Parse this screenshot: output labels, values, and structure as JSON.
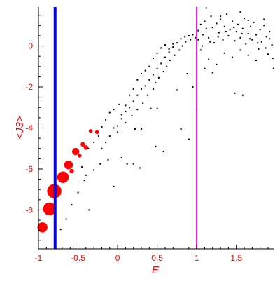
{
  "chart_data": {
    "type": "scatter",
    "title": "",
    "xlabel": "E",
    "ylabel": "<J3>",
    "xlim": [
      -1.0,
      1.98
    ],
    "ylim": [
      -9.9,
      1.9
    ],
    "xticks": [
      -1,
      -0.5,
      0,
      0.5,
      1,
      1.5
    ],
    "xtick_labels": [
      "-1",
      "-0.5",
      "0",
      "0.5",
      "1",
      "1.5"
    ],
    "yticks": [
      -8,
      -6,
      -4,
      -2,
      0
    ],
    "ytick_labels": [
      "-8",
      "-6",
      "-4",
      "-2",
      "0"
    ],
    "grid": false,
    "vertical_lines": [
      {
        "x": -0.79,
        "color": "#0000ff"
      },
      {
        "x": 1.0,
        "color": "#cc00cc"
      }
    ],
    "series": [
      {
        "color": "#ff0000",
        "marker": "circle",
        "points": [
          {
            "x": -0.95,
            "y": -8.85,
            "weight": 3.0
          },
          {
            "x": -0.86,
            "y": -7.95,
            "weight": 4.0
          },
          {
            "x": -0.8,
            "y": -7.08,
            "weight": 4.5
          },
          {
            "x": -0.69,
            "y": -6.4,
            "weight": 3.5
          },
          {
            "x": -0.62,
            "y": -5.8,
            "weight": 2.5
          },
          {
            "x": -0.58,
            "y": -6.1,
            "weight": 1.0
          },
          {
            "x": -0.53,
            "y": -5.15,
            "weight": 2.0
          },
          {
            "x": -0.48,
            "y": -5.35,
            "weight": 0.8
          },
          {
            "x": -0.44,
            "y": -4.8,
            "weight": 1.0
          },
          {
            "x": -0.4,
            "y": -4.95,
            "weight": 1.0
          },
          {
            "x": -0.34,
            "y": -4.15,
            "weight": 0.8
          },
          {
            "x": -0.26,
            "y": -4.2,
            "weight": 0.8
          }
        ]
      },
      {
        "color": "#000000",
        "marker": "dot",
        "points": [
          {
            "x": -0.72,
            "y": -8.95
          },
          {
            "x": -0.65,
            "y": -8.45
          },
          {
            "x": -0.58,
            "y": -7.75
          },
          {
            "x": -0.5,
            "y": -7.15
          },
          {
            "x": -0.42,
            "y": -6.55
          },
          {
            "x": -0.36,
            "y": -8.0
          },
          {
            "x": -0.3,
            "y": -6.05
          },
          {
            "x": -0.22,
            "y": -5.75
          },
          {
            "x": -0.12,
            "y": -5.55
          },
          {
            "x": -0.05,
            "y": -6.85
          },
          {
            "x": 0.05,
            "y": -5.45
          },
          {
            "x": 0.12,
            "y": -5.75
          },
          {
            "x": 0.2,
            "y": -5.75
          },
          {
            "x": 0.28,
            "y": -5.95
          },
          {
            "x": 0.48,
            "y": -4.9
          },
          {
            "x": 0.58,
            "y": -5.15
          },
          {
            "x": -0.45,
            "y": -5.9
          },
          {
            "x": -0.4,
            "y": -6.3
          },
          {
            "x": -0.37,
            "y": -5.0
          },
          {
            "x": -0.3,
            "y": -4.7
          },
          {
            "x": -0.24,
            "y": -4.4
          },
          {
            "x": -0.2,
            "y": -3.95
          },
          {
            "x": -0.15,
            "y": -3.6
          },
          {
            "x": -0.1,
            "y": -3.25
          },
          {
            "x": -0.05,
            "y": -3.1
          },
          {
            "x": 0.02,
            "y": -2.85
          },
          {
            "x": 0.05,
            "y": -3.35
          },
          {
            "x": 0.1,
            "y": -2.9
          },
          {
            "x": 0.15,
            "y": -2.4
          },
          {
            "x": 0.2,
            "y": -2.1
          },
          {
            "x": 0.25,
            "y": -1.65
          },
          {
            "x": 0.3,
            "y": -1.35
          },
          {
            "x": 0.35,
            "y": -1.2
          },
          {
            "x": 0.4,
            "y": -1.0
          },
          {
            "x": 0.45,
            "y": -0.6
          },
          {
            "x": 0.5,
            "y": -0.35
          },
          {
            "x": 0.55,
            "y": -0.1
          },
          {
            "x": 0.6,
            "y": 0.05
          },
          {
            "x": 0.65,
            "y": -0.15
          },
          {
            "x": 0.7,
            "y": 0.1
          },
          {
            "x": -0.2,
            "y": -5.0
          },
          {
            "x": -0.15,
            "y": -4.7
          },
          {
            "x": -0.1,
            "y": -4.4
          },
          {
            "x": -0.05,
            "y": -4.0
          },
          {
            "x": 0.0,
            "y": -3.9
          },
          {
            "x": 0.05,
            "y": -3.55
          },
          {
            "x": 0.1,
            "y": -3.2
          },
          {
            "x": 0.15,
            "y": -3.0
          },
          {
            "x": 0.2,
            "y": -2.7
          },
          {
            "x": 0.25,
            "y": -2.4
          },
          {
            "x": 0.3,
            "y": -2.1
          },
          {
            "x": 0.35,
            "y": -1.95
          },
          {
            "x": 0.4,
            "y": -1.65
          },
          {
            "x": 0.45,
            "y": -1.4
          },
          {
            "x": 0.5,
            "y": -1.1
          },
          {
            "x": 0.55,
            "y": -0.85
          },
          {
            "x": 0.6,
            "y": -0.55
          },
          {
            "x": 0.65,
            "y": -0.3
          },
          {
            "x": 0.7,
            "y": -0.05
          },
          {
            "x": 0.75,
            "y": 0.15
          },
          {
            "x": 0.8,
            "y": 0.35
          },
          {
            "x": 0.85,
            "y": 0.45
          },
          {
            "x": 0.9,
            "y": 0.5
          },
          {
            "x": 0.95,
            "y": 0.55
          },
          {
            "x": 0.0,
            "y": -4.2
          },
          {
            "x": 0.1,
            "y": -3.75
          },
          {
            "x": 0.18,
            "y": -3.4
          },
          {
            "x": 0.22,
            "y": -4.05
          },
          {
            "x": 0.25,
            "y": -3.1
          },
          {
            "x": 0.32,
            "y": -2.8
          },
          {
            "x": 0.38,
            "y": -2.4
          },
          {
            "x": 0.42,
            "y": -3.05
          },
          {
            "x": 0.45,
            "y": -2.1
          },
          {
            "x": 0.48,
            "y": -1.8
          },
          {
            "x": 0.52,
            "y": -1.55
          },
          {
            "x": 0.58,
            "y": -1.25
          },
          {
            "x": 0.62,
            "y": -1.0
          },
          {
            "x": 0.66,
            "y": -0.7
          },
          {
            "x": 0.72,
            "y": -0.45
          },
          {
            "x": 0.78,
            "y": -0.2
          },
          {
            "x": 0.82,
            "y": 0.0
          },
          {
            "x": 0.86,
            "y": 0.2
          },
          {
            "x": 0.92,
            "y": 0.3
          },
          {
            "x": 0.98,
            "y": 0.4
          },
          {
            "x": 0.3,
            "y": -4.05
          },
          {
            "x": 0.5,
            "y": -3.05
          },
          {
            "x": 0.75,
            "y": -2.15
          },
          {
            "x": 0.8,
            "y": -4.05
          },
          {
            "x": 0.88,
            "y": -1.35
          },
          {
            "x": 0.9,
            "y": -4.55
          },
          {
            "x": 0.95,
            "y": -2.0
          },
          {
            "x": 1.0,
            "y": -3.1
          },
          {
            "x": 1.02,
            "y": 0.75
          },
          {
            "x": 1.05,
            "y": 1.05
          },
          {
            "x": 1.08,
            "y": 0.55
          },
          {
            "x": 1.1,
            "y": 1.2
          },
          {
            "x": 1.12,
            "y": 0.85
          },
          {
            "x": 1.15,
            "y": 0.4
          },
          {
            "x": 1.18,
            "y": 1.45
          },
          {
            "x": 1.2,
            "y": 0.9
          },
          {
            "x": 1.22,
            "y": 0.15
          },
          {
            "x": 1.25,
            "y": 1.1
          },
          {
            "x": 1.28,
            "y": 0.65
          },
          {
            "x": 1.3,
            "y": 1.3
          },
          {
            "x": 1.33,
            "y": 0.3
          },
          {
            "x": 1.35,
            "y": 0.95
          },
          {
            "x": 1.38,
            "y": 1.55
          },
          {
            "x": 1.4,
            "y": 0.5
          },
          {
            "x": 1.42,
            "y": 0.8
          },
          {
            "x": 1.45,
            "y": 1.2
          },
          {
            "x": 1.48,
            "y": 0.25
          },
          {
            "x": 1.5,
            "y": 0.7
          },
          {
            "x": 1.52,
            "y": 1.05
          },
          {
            "x": 1.55,
            "y": 0.4
          },
          {
            "x": 1.58,
            "y": 0.85
          },
          {
            "x": 1.6,
            "y": 1.35
          },
          {
            "x": 1.62,
            "y": 0.1
          },
          {
            "x": 1.65,
            "y": 0.6
          },
          {
            "x": 1.68,
            "y": 0.95
          },
          {
            "x": 1.7,
            "y": 0.3
          },
          {
            "x": 1.72,
            "y": 1.15
          },
          {
            "x": 1.75,
            "y": 0.55
          },
          {
            "x": 1.78,
            "y": -0.15
          },
          {
            "x": 1.8,
            "y": 0.8
          },
          {
            "x": 1.82,
            "y": 0.2
          },
          {
            "x": 1.85,
            "y": 1.0
          },
          {
            "x": 1.88,
            "y": 0.45
          },
          {
            "x": 1.9,
            "y": -0.4
          },
          {
            "x": 1.92,
            "y": 0.7
          },
          {
            "x": 1.95,
            "y": 0.05
          },
          {
            "x": 1.96,
            "y": -0.6
          },
          {
            "x": 1.97,
            "y": -1.1
          },
          {
            "x": 1.05,
            "y": -0.2
          },
          {
            "x": 1.15,
            "y": -0.65
          },
          {
            "x": 1.25,
            "y": -0.9
          },
          {
            "x": 1.35,
            "y": -0.35
          },
          {
            "x": 1.45,
            "y": -0.55
          },
          {
            "x": 1.55,
            "y": -0.2
          },
          {
            "x": 1.65,
            "y": -0.45
          },
          {
            "x": 1.75,
            "y": -0.7
          },
          {
            "x": 1.12,
            "y": 1.85
          },
          {
            "x": 1.3,
            "y": 1.45
          },
          {
            "x": 1.55,
            "y": 1.65
          },
          {
            "x": 1.85,
            "y": 1.3
          },
          {
            "x": 1.48,
            "y": -2.3
          },
          {
            "x": 1.58,
            "y": -2.4
          },
          {
            "x": 1.2,
            "y": -1.3
          },
          {
            "x": 1.1,
            "y": -1.1
          },
          {
            "x": 1.65,
            "y": 1.25
          },
          {
            "x": 1.02,
            "y": 0.3
          },
          {
            "x": 1.07,
            "y": 0.0
          },
          {
            "x": 1.17,
            "y": 0.2
          },
          {
            "x": 1.27,
            "y": 0.45
          },
          {
            "x": 1.37,
            "y": 0.7
          },
          {
            "x": 1.47,
            "y": 0.9
          },
          {
            "x": 1.57,
            "y": 0.6
          },
          {
            "x": 1.67,
            "y": 0.35
          },
          {
            "x": 1.77,
            "y": 0.15
          },
          {
            "x": 1.87,
            "y": -0.1
          },
          {
            "x": 1.92,
            "y": 0.35
          }
        ]
      }
    ]
  }
}
